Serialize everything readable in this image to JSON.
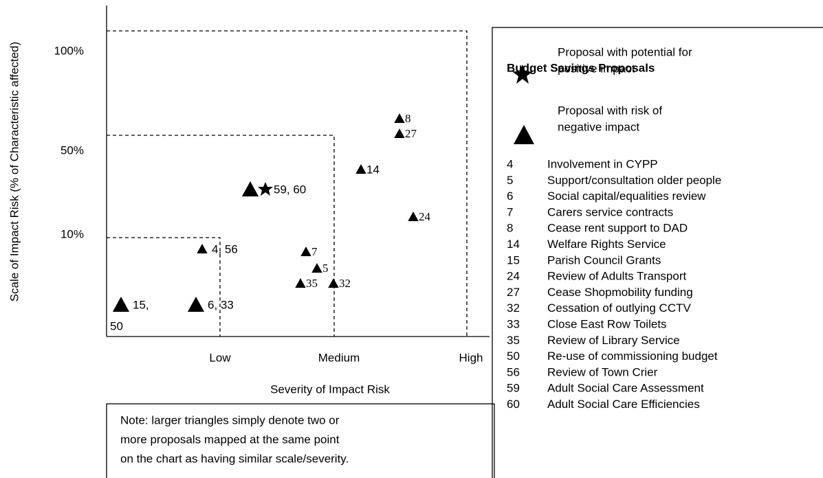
{
  "axes": {
    "y_title": "Scale of Impact Risk (% of Characteristic affected)",
    "x_title": "Severity of Impact Risk",
    "y_labels": [
      "100%",
      "50%",
      "10%"
    ],
    "x_labels": [
      "Low",
      "Medium",
      "High"
    ]
  },
  "points": [
    [
      "15,",
      "50"
    ],
    [
      "6, 33"
    ],
    [
      "4, 56"
    ],
    [
      "59, 60"
    ],
    [
      "7"
    ],
    [
      "5"
    ],
    [
      "35"
    ],
    [
      "32"
    ],
    [
      "14"
    ],
    [
      "8"
    ],
    [
      "27"
    ],
    [
      "24"
    ]
  ],
  "legend": {
    "title": "Budget Savings Proposals",
    "symbols": [
      [
        "Proposal with potential for",
        "positive impact"
      ],
      [
        "Proposal with risk of",
        "negative impact"
      ]
    ],
    "items": [
      [
        "4",
        "Involvement in CYPP"
      ],
      [
        "5",
        "Support/consultation older people"
      ],
      [
        "6",
        "Social capital/equalities review"
      ],
      [
        "7",
        "Carers service contracts"
      ],
      [
        "8",
        "Cease rent support to DAD"
      ],
      [
        "14",
        "Welfare Rights Service"
      ],
      [
        "15",
        "Parish Council Grants"
      ],
      [
        "24",
        "Review of Adults Transport"
      ],
      [
        "27",
        "Cease Shopmobility funding"
      ],
      [
        "32",
        "Cessation of outlying CCTV"
      ],
      [
        "33",
        "Close East Row Toilets"
      ],
      [
        "35",
        "Review of Library Service"
      ],
      [
        "50",
        "Re-use of commissioning budget"
      ],
      [
        "56",
        "Review of Town Crier"
      ],
      [
        "59",
        "Adult Social Care Assessment"
      ],
      [
        "60",
        "Adult Social Care Efficiencies"
      ]
    ]
  },
  "note": [
    "Note: larger triangles simply denote two or",
    "more proposals mapped at the same point",
    "on the chart as having similar scale/severity."
  ]
}
